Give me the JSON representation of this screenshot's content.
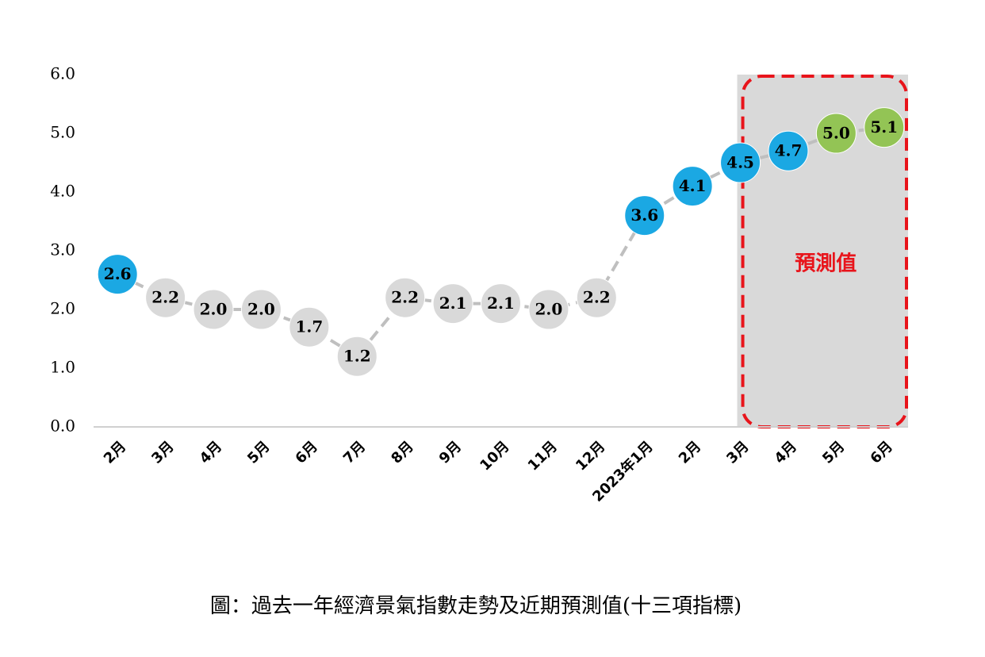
{
  "chart_data": {
    "type": "line",
    "caption": "圖：過去一年經濟景氣指數走勢及近期預測值(十三項指標)",
    "annotation": "預測值",
    "categories": [
      "2月",
      "3月",
      "4月",
      "5月",
      "6月",
      "7月",
      "8月",
      "9月",
      "10月",
      "11月",
      "12月",
      "2023年1月",
      "2月",
      "3月",
      "4月",
      "5月",
      "6月"
    ],
    "series": [
      {
        "values": [
          2.6,
          2.2,
          2.0,
          2.0,
          1.7,
          1.2,
          2.2,
          2.1,
          2.1,
          2.0,
          2.2,
          3.6,
          4.1,
          4.5,
          4.7,
          5.0,
          5.1
        ],
        "value_labels": [
          "2.6",
          "2.2",
          "2.0",
          "2.0",
          "1.7",
          "1.2",
          "2.2",
          "2.1",
          "2.1",
          "2.0",
          "2.2",
          "3.6",
          "4.1",
          "4.5",
          "4.7",
          "5.0",
          "5.1"
        ],
        "color": "#bfbfbf",
        "point_colors": [
          "#1ba8e3",
          "#d9d9d9",
          "#d9d9d9",
          "#d9d9d9",
          "#d9d9d9",
          "#d9d9d9",
          "#d9d9d9",
          "#d9d9d9",
          "#d9d9d9",
          "#d9d9d9",
          "#d9d9d9",
          "#1ba8e3",
          "#1ba8e3",
          "#1ba8e3",
          "#1ba8e3",
          "#93c455",
          "#93c455"
        ]
      }
    ],
    "ylim": [
      0,
      6
    ],
    "yticks": [
      {
        "value": 0,
        "label": "0.0"
      },
      {
        "value": 1,
        "label": "1.0"
      },
      {
        "value": 2,
        "label": "2.0"
      },
      {
        "value": 3,
        "label": "3.0"
      },
      {
        "value": 4,
        "label": "4.0"
      },
      {
        "value": 5,
        "label": "5.0"
      },
      {
        "value": 6,
        "label": "6.0"
      }
    ]
  }
}
